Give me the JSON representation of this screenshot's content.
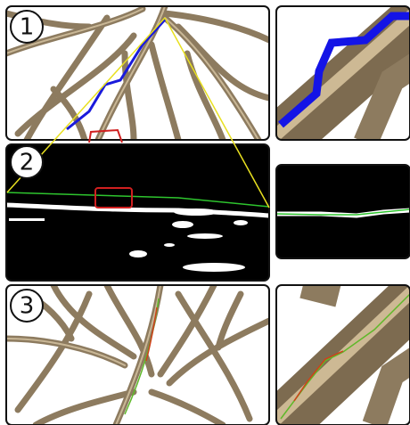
{
  "panels": [
    {
      "label": "1"
    },
    {
      "label": "2"
    },
    {
      "label": "3"
    }
  ]
}
